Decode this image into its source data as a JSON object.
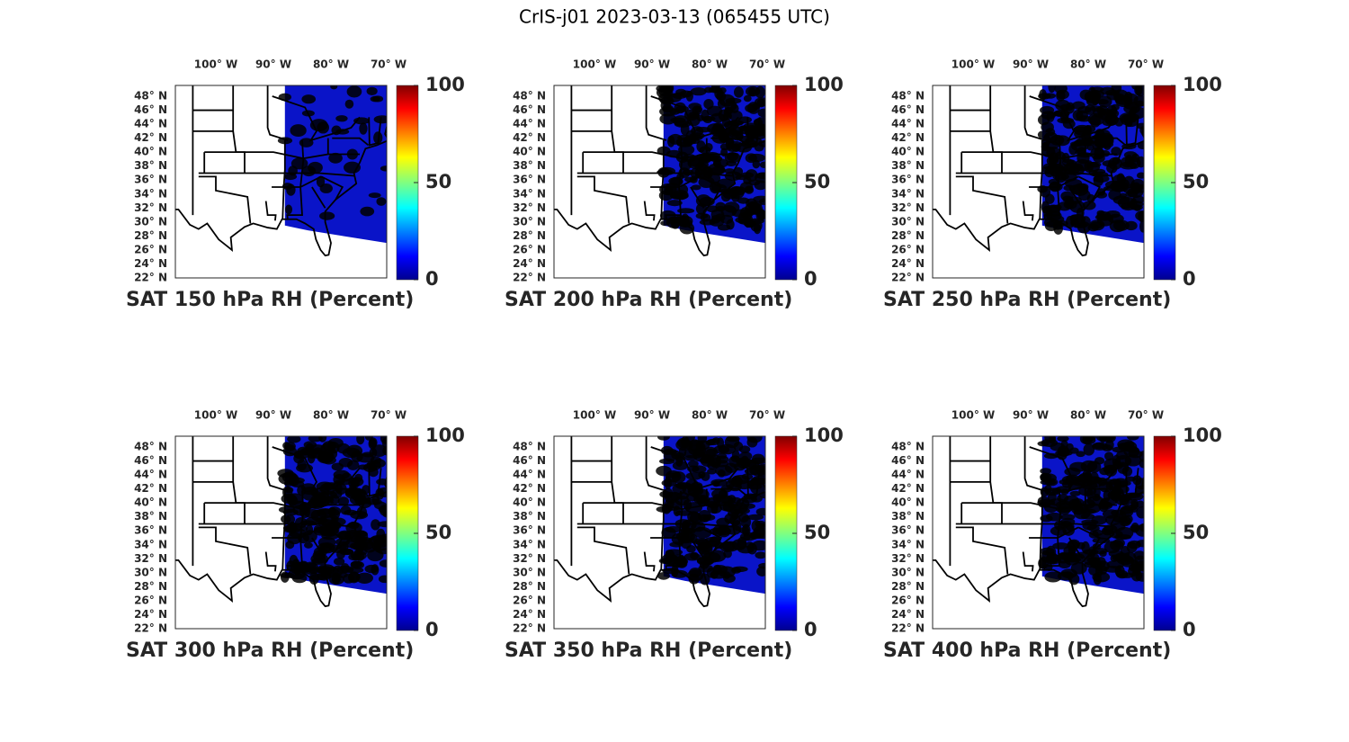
{
  "title": "CrIS-j01 2023-03-13 (065455 UTC)",
  "lon_labels": [
    "100° W",
    "90° W",
    "80° W",
    "70° W"
  ],
  "lat_labels": [
    "48° N",
    "46° N",
    "44° N",
    "42° N",
    "40° N",
    "38° N",
    "36° N",
    "34° N",
    "32° N",
    "30° N",
    "28° N",
    "26° N",
    "24° N",
    "22° N"
  ],
  "colorbar": {
    "lim": [
      0,
      100
    ],
    "ticks": [
      0,
      50,
      100
    ]
  },
  "panels": [
    {
      "title": "SAT 150 hPa RH (Percent)"
    },
    {
      "title": "SAT 200 hPa RH (Percent)"
    },
    {
      "title": "SAT 250 hPa RH (Percent)"
    },
    {
      "title": "SAT 300 hPa RH (Percent)"
    },
    {
      "title": "SAT 350 hPa RH (Percent)"
    },
    {
      "title": "SAT 400 hPa RH (Percent)"
    }
  ]
}
